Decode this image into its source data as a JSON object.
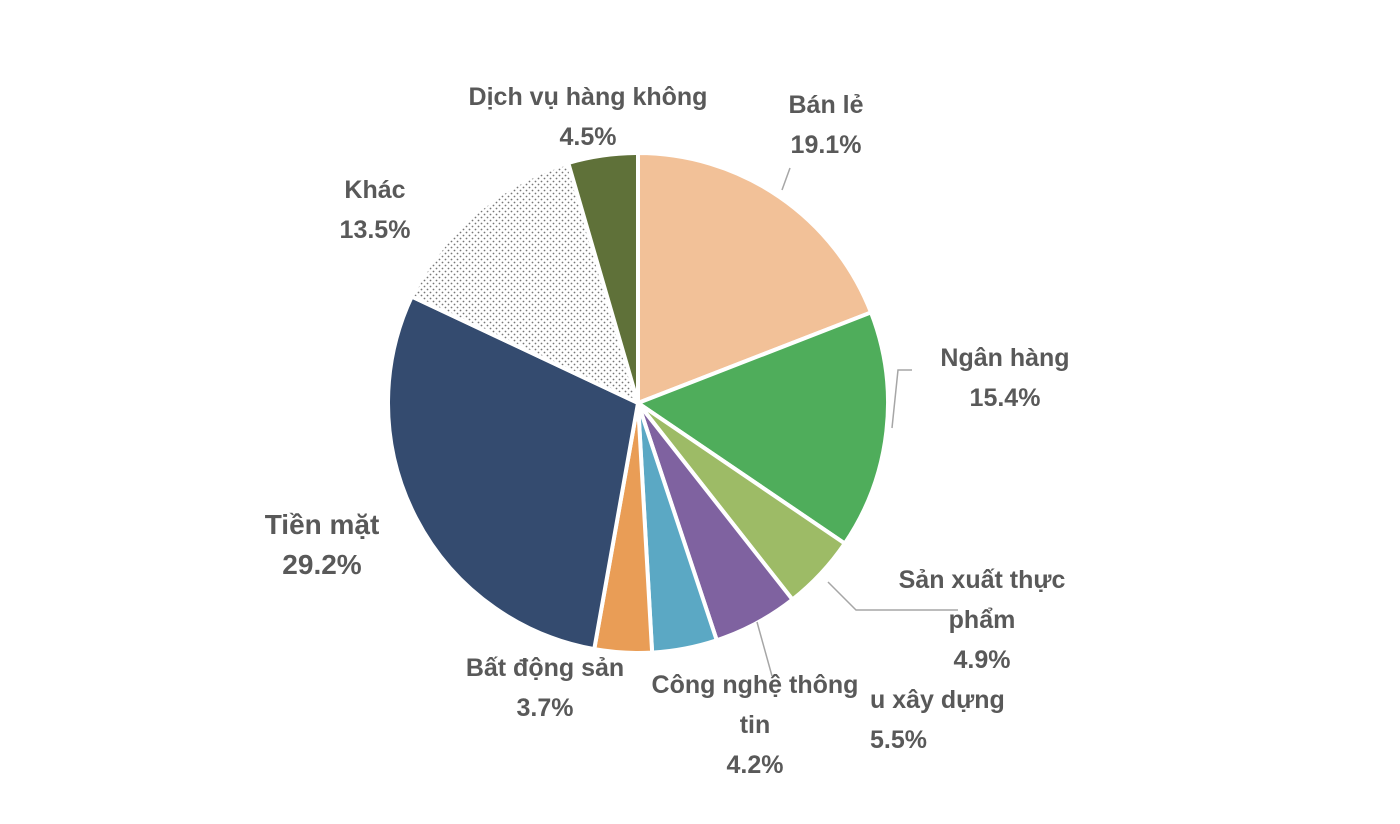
{
  "chart_data": {
    "type": "pie",
    "categories": [
      "Bán lẻ",
      "Ngân hàng",
      "Sản xuất thực phẩm",
      "u xây dựng",
      "Công nghệ thông tin",
      "Bất động sản",
      "Tiền mặt",
      "Khác",
      "Dịch vụ hàng không"
    ],
    "values": [
      19.1,
      15.4,
      4.9,
      5.5,
      4.2,
      3.7,
      29.2,
      13.5,
      4.5
    ],
    "value_labels": [
      "19.1%",
      "15.4%",
      "4.9%",
      "5.5%",
      "4.2%",
      "3.7%",
      "29.2%",
      "13.5%",
      "4.5%"
    ],
    "colors": [
      "#f2c198",
      "#4fad5b",
      "#9dbb66",
      "#7f62a0",
      "#5ba8c4",
      "#e99d56",
      "#344b6f",
      "#ffffff",
      "#5f7139"
    ],
    "patterns": [
      null,
      null,
      null,
      null,
      null,
      null,
      null,
      "dots",
      null
    ]
  }
}
